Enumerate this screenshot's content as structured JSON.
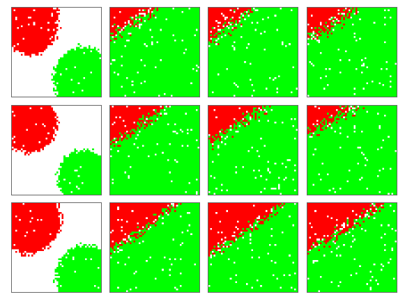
{
  "colors": {
    "red": "#ff0000",
    "green": "#00ff00",
    "empty": "#ffffff",
    "frame": "#666666"
  },
  "grid": {
    "rows": 3,
    "cols": 4,
    "cells_per_side": 50
  },
  "panels": [
    {
      "row": 0,
      "col": 0,
      "state": "initial-separated"
    },
    {
      "row": 0,
      "col": 1,
      "state": "mixed"
    },
    {
      "row": 0,
      "col": 2,
      "state": "mixed"
    },
    {
      "row": 0,
      "col": 3,
      "state": "mixed"
    },
    {
      "row": 1,
      "col": 0,
      "state": "initial-separated"
    },
    {
      "row": 1,
      "col": 1,
      "state": "mixed"
    },
    {
      "row": 1,
      "col": 2,
      "state": "mixed"
    },
    {
      "row": 1,
      "col": 3,
      "state": "mixed"
    },
    {
      "row": 2,
      "col": 0,
      "state": "initial-separated"
    },
    {
      "row": 2,
      "col": 1,
      "state": "mixed"
    },
    {
      "row": 2,
      "col": 2,
      "state": "mixed"
    },
    {
      "row": 2,
      "col": 3,
      "state": "mixed"
    }
  ]
}
